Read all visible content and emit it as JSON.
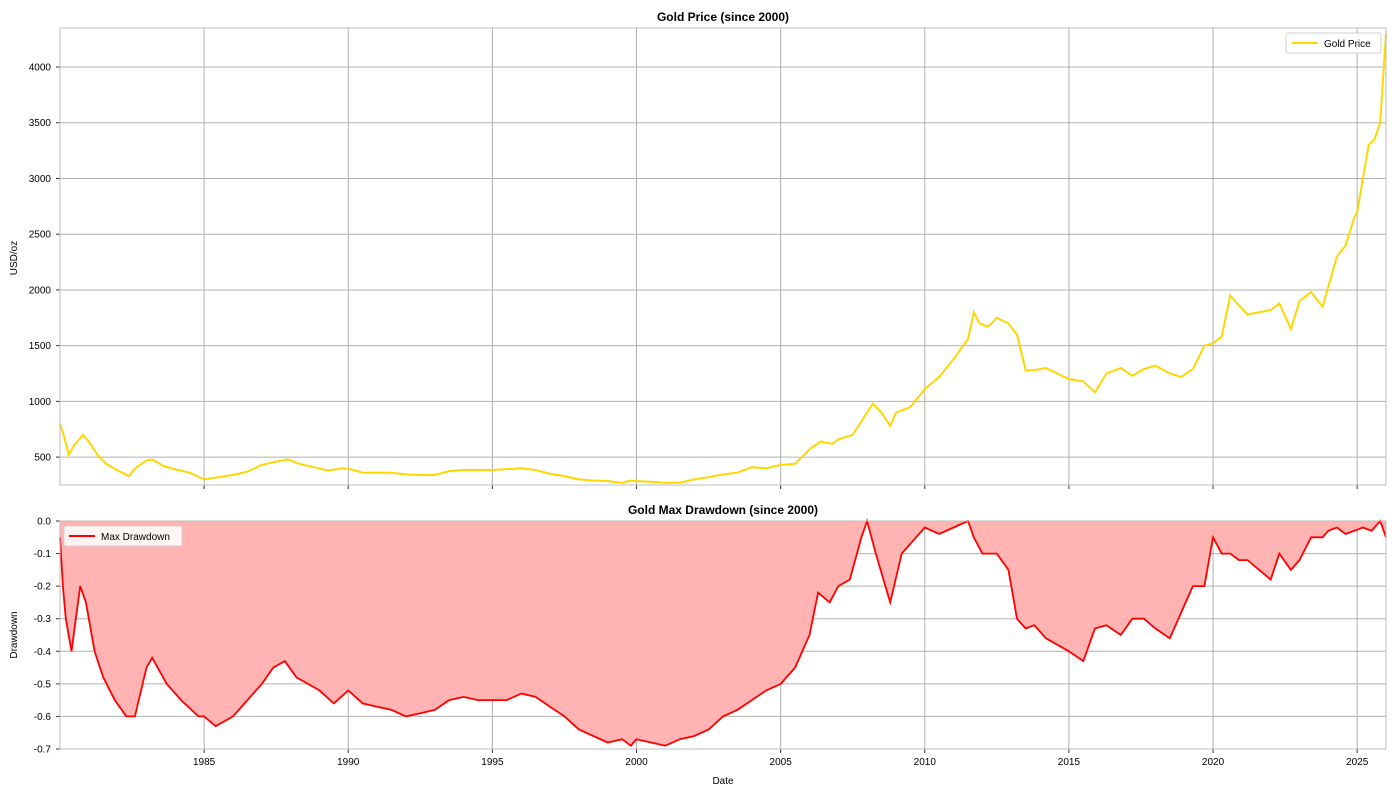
{
  "figure": {
    "top_title": "Gold Price (since 2000)",
    "top_ylabel": "USD/oz",
    "top_legend": "Gold Price",
    "bottom_title": "Gold Max Drawdown (since 2000)",
    "bottom_ylabel": "Drawdown",
    "bottom_xlabel": "Date",
    "bottom_legend": "Max Drawdown"
  },
  "chart_data": [
    {
      "type": "line",
      "title": "Gold Price (since 2000)",
      "xlabel": "",
      "ylabel": "USD/oz",
      "xlim": [
        1980.0,
        2026.0
      ],
      "ylim": [
        250,
        4350
      ],
      "x_ticks": [
        1985,
        1990,
        1995,
        2000,
        2005,
        2010,
        2015,
        2020,
        2025
      ],
      "y_ticks": [
        500,
        1000,
        1500,
        2000,
        2500,
        3000,
        3500,
        4000
      ],
      "grid": true,
      "legend_position": "top-right",
      "color": "#FFD700",
      "series": [
        {
          "name": "Gold Price",
          "x": [
            1980.0,
            1980.15,
            1980.3,
            1980.5,
            1980.8,
            1981.0,
            1981.3,
            1981.6,
            1982.0,
            1982.4,
            1982.6,
            1983.0,
            1983.2,
            1983.6,
            1984.0,
            1984.5,
            1985.0,
            1985.5,
            1986.0,
            1986.5,
            1987.0,
            1987.5,
            1987.9,
            1988.3,
            1988.8,
            1989.3,
            1989.8,
            1990.1,
            1990.5,
            1991.0,
            1991.5,
            1992.0,
            1992.5,
            1993.0,
            1993.5,
            1994.0,
            1995.0,
            1996.0,
            1996.5,
            1997.0,
            1997.5,
            1998.0,
            1998.5,
            1999.0,
            1999.5,
            1999.8,
            2000.0,
            2000.5,
            2001.0,
            2001.5,
            2002.0,
            2002.5,
            2003.0,
            2003.5,
            2004.0,
            2004.5,
            2005.0,
            2005.5,
            2006.0,
            2006.4,
            2006.8,
            2007.0,
            2007.5,
            2008.0,
            2008.2,
            2008.5,
            2008.8,
            2009.0,
            2009.5,
            2010.0,
            2010.5,
            2011.0,
            2011.5,
            2011.7,
            2011.9,
            2012.2,
            2012.5,
            2012.9,
            2013.2,
            2013.5,
            2013.8,
            2014.2,
            2014.6,
            2015.0,
            2015.5,
            2015.9,
            2016.3,
            2016.8,
            2017.2,
            2017.6,
            2018.0,
            2018.5,
            2018.9,
            2019.3,
            2019.7,
            2020.0,
            2020.3,
            2020.6,
            2020.9,
            2021.2,
            2021.6,
            2022.0,
            2022.3,
            2022.7,
            2023.0,
            2023.4,
            2023.8,
            2024.0,
            2024.3,
            2024.6,
            2024.9,
            2025.0,
            2025.2,
            2025.4,
            2025.6,
            2025.8,
            2026.0
          ],
          "y": [
            800,
            680,
            520,
            610,
            700,
            640,
            520,
            440,
            380,
            330,
            400,
            470,
            480,
            420,
            390,
            360,
            300,
            320,
            340,
            370,
            430,
            460,
            480,
            440,
            410,
            380,
            400,
            390,
            360,
            360,
            360,
            345,
            340,
            340,
            375,
            385,
            385,
            400,
            385,
            350,
            330,
            300,
            290,
            285,
            270,
            290,
            285,
            280,
            270,
            270,
            300,
            320,
            345,
            360,
            410,
            400,
            430,
            440,
            570,
            640,
            620,
            660,
            700,
            900,
            980,
            900,
            780,
            900,
            950,
            1110,
            1220,
            1380,
            1560,
            1800,
            1700,
            1670,
            1750,
            1700,
            1600,
            1280,
            1280,
            1300,
            1250,
            1200,
            1180,
            1080,
            1250,
            1300,
            1230,
            1290,
            1320,
            1250,
            1220,
            1290,
            1500,
            1520,
            1580,
            1950,
            1860,
            1780,
            1800,
            1820,
            1880,
            1650,
            1900,
            1980,
            1850,
            2030,
            2300,
            2400,
            2650,
            2700,
            3000,
            3300,
            3350,
            3500,
            4300
          ]
        }
      ]
    },
    {
      "type": "area",
      "title": "Gold Max Drawdown (since 2000)",
      "xlabel": "Date",
      "ylabel": "Drawdown",
      "xlim": [
        1980.0,
        2026.0
      ],
      "ylim": [
        -0.7,
        0.0
      ],
      "x_ticks": [
        1985,
        1990,
        1995,
        2000,
        2005,
        2010,
        2015,
        2020,
        2025
      ],
      "y_ticks": [
        0.0,
        -0.1,
        -0.2,
        -0.3,
        -0.4,
        -0.5,
        -0.6,
        -0.7
      ],
      "grid": true,
      "legend_position": "top-left",
      "color": "#FF0000",
      "fill_color": "#FFB3B3",
      "series": [
        {
          "name": "Max Drawdown",
          "x": [
            1980.0,
            1980.1,
            1980.2,
            1980.4,
            1980.7,
            1980.9,
            1981.2,
            1981.5,
            1981.9,
            1982.3,
            1982.6,
            1983.0,
            1983.2,
            1983.7,
            1984.2,
            1984.8,
            1985.0,
            1985.4,
            1986.0,
            1986.5,
            1987.0,
            1987.4,
            1987.8,
            1988.2,
            1988.6,
            1989.0,
            1989.5,
            1990.0,
            1990.5,
            1991.0,
            1991.5,
            1992.0,
            1992.5,
            1993.0,
            1993.5,
            1994.0,
            1994.5,
            1995.0,
            1995.5,
            1996.0,
            1996.5,
            1997.0,
            1997.5,
            1998.0,
            1998.5,
            1999.0,
            1999.5,
            1999.8,
            2000.0,
            2000.5,
            2001.0,
            2001.5,
            2002.0,
            2002.5,
            2003.0,
            2003.5,
            2004.0,
            2004.5,
            2005.0,
            2005.5,
            2006.0,
            2006.3,
            2006.7,
            2007.0,
            2007.4,
            2007.8,
            2008.0,
            2008.3,
            2008.8,
            2009.2,
            2009.7,
            2010.0,
            2010.5,
            2011.0,
            2011.5,
            2011.7,
            2012.0,
            2012.5,
            2012.9,
            2013.2,
            2013.5,
            2013.8,
            2014.2,
            2014.6,
            2015.0,
            2015.5,
            2015.9,
            2016.3,
            2016.8,
            2017.2,
            2017.6,
            2018.0,
            2018.5,
            2018.9,
            2019.3,
            2019.7,
            2020.0,
            2020.3,
            2020.6,
            2020.9,
            2021.2,
            2021.6,
            2022.0,
            2022.3,
            2022.7,
            2023.0,
            2023.4,
            2023.8,
            2024.0,
            2024.3,
            2024.6,
            2024.9,
            2025.2,
            2025.5,
            2025.8,
            2026.0
          ],
          "y": [
            -0.05,
            -0.2,
            -0.3,
            -0.4,
            -0.2,
            -0.25,
            -0.4,
            -0.48,
            -0.55,
            -0.6,
            -0.6,
            -0.45,
            -0.42,
            -0.5,
            -0.55,
            -0.6,
            -0.6,
            -0.63,
            -0.6,
            -0.55,
            -0.5,
            -0.45,
            -0.43,
            -0.48,
            -0.5,
            -0.52,
            -0.56,
            -0.52,
            -0.56,
            -0.57,
            -0.58,
            -0.6,
            -0.59,
            -0.58,
            -0.55,
            -0.54,
            -0.55,
            -0.55,
            -0.55,
            -0.53,
            -0.54,
            -0.57,
            -0.6,
            -0.64,
            -0.66,
            -0.68,
            -0.67,
            -0.69,
            -0.67,
            -0.68,
            -0.69,
            -0.67,
            -0.66,
            -0.64,
            -0.6,
            -0.58,
            -0.55,
            -0.52,
            -0.5,
            -0.45,
            -0.35,
            -0.22,
            -0.25,
            -0.2,
            -0.18,
            -0.05,
            0.0,
            -0.1,
            -0.25,
            -0.1,
            -0.05,
            -0.02,
            -0.04,
            -0.02,
            0.0,
            -0.05,
            -0.1,
            -0.1,
            -0.15,
            -0.3,
            -0.33,
            -0.32,
            -0.36,
            -0.38,
            -0.4,
            -0.43,
            -0.33,
            -0.32,
            -0.35,
            -0.3,
            -0.3,
            -0.33,
            -0.36,
            -0.28,
            -0.2,
            -0.2,
            -0.05,
            -0.1,
            -0.1,
            -0.12,
            -0.12,
            -0.15,
            -0.18,
            -0.1,
            -0.15,
            -0.12,
            -0.05,
            -0.05,
            -0.03,
            -0.02,
            -0.04,
            -0.03,
            -0.02,
            -0.03,
            0.0,
            -0.05
          ]
        }
      ]
    }
  ]
}
